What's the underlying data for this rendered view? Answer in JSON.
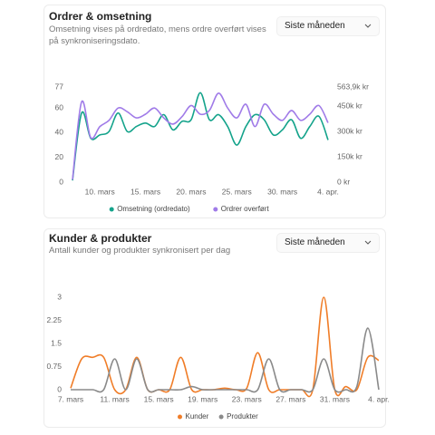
{
  "chart_data": [
    {
      "type": "line",
      "title": "Ordrer & omsetning",
      "subtitle": "Omsetning vises på ordredato, mens ordre overført vises på synkroniseringsdato.",
      "filter": "Siste måneden",
      "categories": [
        null,
        null,
        null,
        "10. mars",
        null,
        null,
        null,
        null,
        "15. mars",
        null,
        null,
        null,
        null,
        "20. mars",
        null,
        null,
        null,
        null,
        "25. mars",
        null,
        null,
        null,
        null,
        "30. mars",
        null,
        null,
        null,
        null,
        "4. apr."
      ],
      "series": [
        {
          "name": "Omsetning (ordredato)",
          "color": "#14a38b",
          "axis": "y2",
          "values": [
            10000,
            410000,
            260000,
            280000,
            300000,
            410000,
            300000,
            330000,
            350000,
            330000,
            400000,
            310000,
            360000,
            370000,
            530000,
            370000,
            400000,
            330000,
            220000,
            330000,
            400000,
            370000,
            280000,
            310000,
            370000,
            260000,
            330000,
            390000,
            250000
          ]
        },
        {
          "name": "Ordrer overført",
          "color": "#a07be8",
          "values": [
            2,
            65,
            36,
            45,
            50,
            60,
            57,
            52,
            55,
            60,
            52,
            47,
            53,
            62,
            55,
            58,
            72,
            60,
            52,
            63,
            45,
            63,
            55,
            50,
            58,
            50,
            55,
            62,
            48
          ]
        }
      ],
      "ylim": [
        0,
        77
      ],
      "yticks": [
        0,
        20,
        40,
        60,
        77
      ],
      "y2lim": [
        0,
        563900
      ],
      "y2ticks": [
        {
          "value": 0,
          "label": "0 kr"
        },
        {
          "value": 150000,
          "label": "150k kr"
        },
        {
          "value": 300000,
          "label": "300k kr"
        },
        {
          "value": 450000,
          "label": "450k kr"
        },
        {
          "value": 563900,
          "label": "563,9k kr"
        }
      ]
    },
    {
      "type": "line",
      "title": "Kunder & produkter",
      "subtitle": "Antall kunder og produkter synkronisert per dag",
      "filter": "Siste måneden",
      "categories": [
        "7. mars",
        null,
        null,
        null,
        "11. mars",
        null,
        null,
        null,
        "15. mars",
        null,
        null,
        null,
        "19. mars",
        null,
        null,
        null,
        "23. mars",
        null,
        null,
        null,
        "27. mars",
        null,
        null,
        null,
        "31. mars",
        null,
        null,
        null,
        "4. apr."
      ],
      "series": [
        {
          "name": "Kunder",
          "color": "#f07d28",
          "values": [
            0.05,
            1,
            1.05,
            1.05,
            0,
            0,
            1.05,
            0,
            0,
            0,
            1.05,
            0,
            0,
            0,
            0.05,
            0,
            0.05,
            1.2,
            0,
            0,
            0,
            0,
            0,
            3,
            0,
            0.1,
            0,
            1.05,
            0.95
          ]
        },
        {
          "name": "Produkter",
          "color": "#8a8a8a",
          "values": [
            0,
            0,
            0,
            0,
            1,
            0,
            1,
            0,
            0,
            0,
            0,
            0.1,
            0,
            0,
            0,
            0,
            0,
            0,
            1,
            0,
            0,
            0,
            0,
            1,
            0,
            0,
            0.1,
            2,
            0
          ]
        }
      ],
      "ylim": [
        0,
        3
      ],
      "yticks": [
        0,
        0.75,
        1.5,
        2.25,
        3
      ]
    }
  ]
}
